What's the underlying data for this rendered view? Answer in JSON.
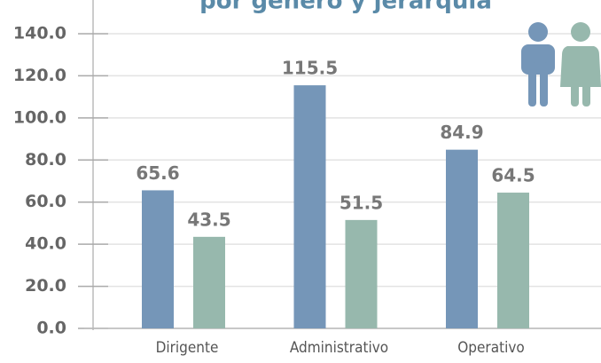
{
  "chart_data": {
    "type": "bar",
    "title": "por género y jerarquía",
    "categories": [
      "Dirigente",
      "Administrativo",
      "Operativo"
    ],
    "series": [
      {
        "color": "#7596b8",
        "values": [
          65.6,
          115.5,
          84.9
        ]
      },
      {
        "color": "#97b8ad",
        "values": [
          43.5,
          51.5,
          64.5
        ]
      }
    ],
    "ylim": [
      0,
      140
    ],
    "yticks": [
      {
        "value": 0,
        "label": "0.0"
      },
      {
        "value": 20,
        "label": "20.0"
      },
      {
        "value": 40,
        "label": "40.0"
      },
      {
        "value": 60,
        "label": "60.0"
      },
      {
        "value": 80,
        "label": "80.0"
      },
      {
        "value": 100,
        "label": "100.0"
      },
      {
        "value": 120,
        "label": "120.0"
      },
      {
        "value": 140,
        "label": "140.0"
      }
    ],
    "grid": true
  }
}
